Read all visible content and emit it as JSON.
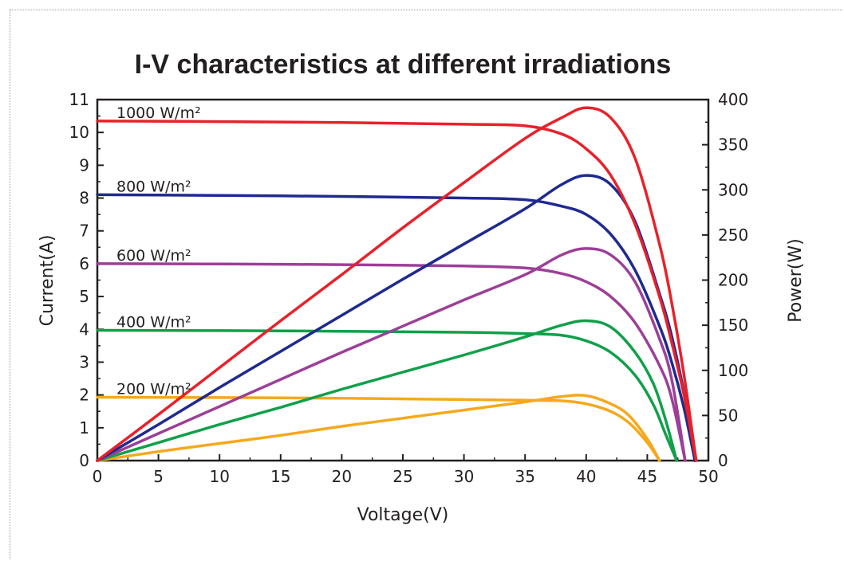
{
  "chart_data": {
    "type": "line",
    "title": "I-V characteristics at different irradiations",
    "xlabel": "Voltage(V)",
    "ylabel": "Current(A)",
    "y2label": "Power(W)",
    "xlim": [
      0,
      50
    ],
    "ylim": [
      0,
      11
    ],
    "y2lim": [
      0,
      400
    ],
    "xticks": [
      0,
      5,
      10,
      15,
      20,
      25,
      30,
      35,
      40,
      45,
      50
    ],
    "yticks": [
      0,
      1,
      2,
      3,
      4,
      5,
      6,
      7,
      8,
      9,
      10,
      11
    ],
    "y2ticks": [
      0,
      50,
      100,
      150,
      200,
      250,
      300,
      350,
      400
    ],
    "grid": false,
    "series": [
      {
        "name": "1000 W/m²",
        "color": "#e8212a",
        "iv": [
          [
            0,
            10.35
          ],
          [
            10,
            10.33
          ],
          [
            20,
            10.3
          ],
          [
            30,
            10.25
          ],
          [
            35,
            10.2
          ],
          [
            38,
            9.95
          ],
          [
            40,
            9.5
          ],
          [
            42,
            8.7
          ],
          [
            44,
            7.2
          ],
          [
            46,
            5.0
          ],
          [
            47,
            3.6
          ],
          [
            48,
            2.0
          ],
          [
            49,
            0.0
          ]
        ],
        "pv": [
          [
            0,
            0
          ],
          [
            5,
            51
          ],
          [
            10,
            103
          ],
          [
            15,
            155
          ],
          [
            20,
            206
          ],
          [
            25,
            258
          ],
          [
            30,
            308
          ],
          [
            35,
            357
          ],
          [
            38,
            380
          ],
          [
            40,
            391
          ],
          [
            42,
            380
          ],
          [
            44,
            335
          ],
          [
            46,
            240
          ],
          [
            47,
            175
          ],
          [
            48,
            95
          ],
          [
            49,
            0
          ]
        ]
      },
      {
        "name": "800 W/m²",
        "color": "#1f2a8f",
        "iv": [
          [
            0,
            8.1
          ],
          [
            10,
            8.08
          ],
          [
            20,
            8.05
          ],
          [
            30,
            8.0
          ],
          [
            35,
            7.95
          ],
          [
            38,
            7.75
          ],
          [
            40,
            7.5
          ],
          [
            42,
            6.9
          ],
          [
            44,
            5.8
          ],
          [
            46,
            4.1
          ],
          [
            47,
            3.0
          ],
          [
            48,
            1.6
          ],
          [
            48.9,
            0.0
          ]
        ],
        "pv": [
          [
            0,
            0
          ],
          [
            5,
            40
          ],
          [
            10,
            81
          ],
          [
            15,
            121
          ],
          [
            20,
            161
          ],
          [
            25,
            201
          ],
          [
            30,
            240
          ],
          [
            35,
            279
          ],
          [
            38,
            306
          ],
          [
            40,
            316
          ],
          [
            42,
            306
          ],
          [
            44,
            265
          ],
          [
            46,
            185
          ],
          [
            47,
            138
          ],
          [
            48,
            75
          ],
          [
            48.9,
            0
          ]
        ]
      },
      {
        "name": "600 W/m²",
        "color": "#9c3f98",
        "iv": [
          [
            0,
            6.0
          ],
          [
            10,
            5.99
          ],
          [
            20,
            5.97
          ],
          [
            30,
            5.93
          ],
          [
            35,
            5.87
          ],
          [
            38,
            5.7
          ],
          [
            40,
            5.45
          ],
          [
            42,
            5.0
          ],
          [
            44,
            4.2
          ],
          [
            46,
            2.9
          ],
          [
            47,
            1.9
          ],
          [
            48.1,
            0.0
          ]
        ],
        "pv": [
          [
            0,
            0
          ],
          [
            5,
            30
          ],
          [
            10,
            60
          ],
          [
            15,
            90
          ],
          [
            20,
            120
          ],
          [
            25,
            149
          ],
          [
            30,
            178
          ],
          [
            35,
            206
          ],
          [
            38,
            228
          ],
          [
            40,
            235
          ],
          [
            42,
            228
          ],
          [
            44,
            198
          ],
          [
            46,
            135
          ],
          [
            47,
            90
          ],
          [
            48.1,
            0
          ]
        ]
      },
      {
        "name": "400 W/m²",
        "color": "#10a04a",
        "iv": [
          [
            0,
            3.97
          ],
          [
            10,
            3.96
          ],
          [
            20,
            3.94
          ],
          [
            30,
            3.91
          ],
          [
            35,
            3.87
          ],
          [
            38,
            3.82
          ],
          [
            40,
            3.65
          ],
          [
            42,
            3.3
          ],
          [
            44,
            2.6
          ],
          [
            45.5,
            1.7
          ],
          [
            46.5,
            0.8
          ],
          [
            47.4,
            0.0
          ]
        ],
        "pv": [
          [
            0,
            0
          ],
          [
            5,
            20
          ],
          [
            10,
            40
          ],
          [
            15,
            59
          ],
          [
            20,
            79
          ],
          [
            25,
            98
          ],
          [
            30,
            117
          ],
          [
            35,
            137
          ],
          [
            38,
            150
          ],
          [
            40,
            155
          ],
          [
            42,
            148
          ],
          [
            44,
            120
          ],
          [
            45.5,
            85
          ],
          [
            46.5,
            45
          ],
          [
            47.4,
            0
          ]
        ]
      },
      {
        "name": "200 W/m²",
        "color": "#f6a81c",
        "iv": [
          [
            0,
            1.93
          ],
          [
            10,
            1.92
          ],
          [
            20,
            1.9
          ],
          [
            30,
            1.86
          ],
          [
            35,
            1.84
          ],
          [
            38,
            1.82
          ],
          [
            40,
            1.73
          ],
          [
            42,
            1.5
          ],
          [
            43.5,
            1.15
          ],
          [
            45,
            0.55
          ],
          [
            46,
            0.0
          ]
        ],
        "pv": [
          [
            0,
            0
          ],
          [
            5,
            10
          ],
          [
            10,
            19
          ],
          [
            15,
            28
          ],
          [
            20,
            38
          ],
          [
            25,
            47
          ],
          [
            30,
            56
          ],
          [
            35,
            65
          ],
          [
            38,
            71
          ],
          [
            40,
            72
          ],
          [
            42,
            63
          ],
          [
            43.5,
            50
          ],
          [
            45,
            24
          ],
          [
            46,
            0
          ]
        ]
      }
    ]
  }
}
